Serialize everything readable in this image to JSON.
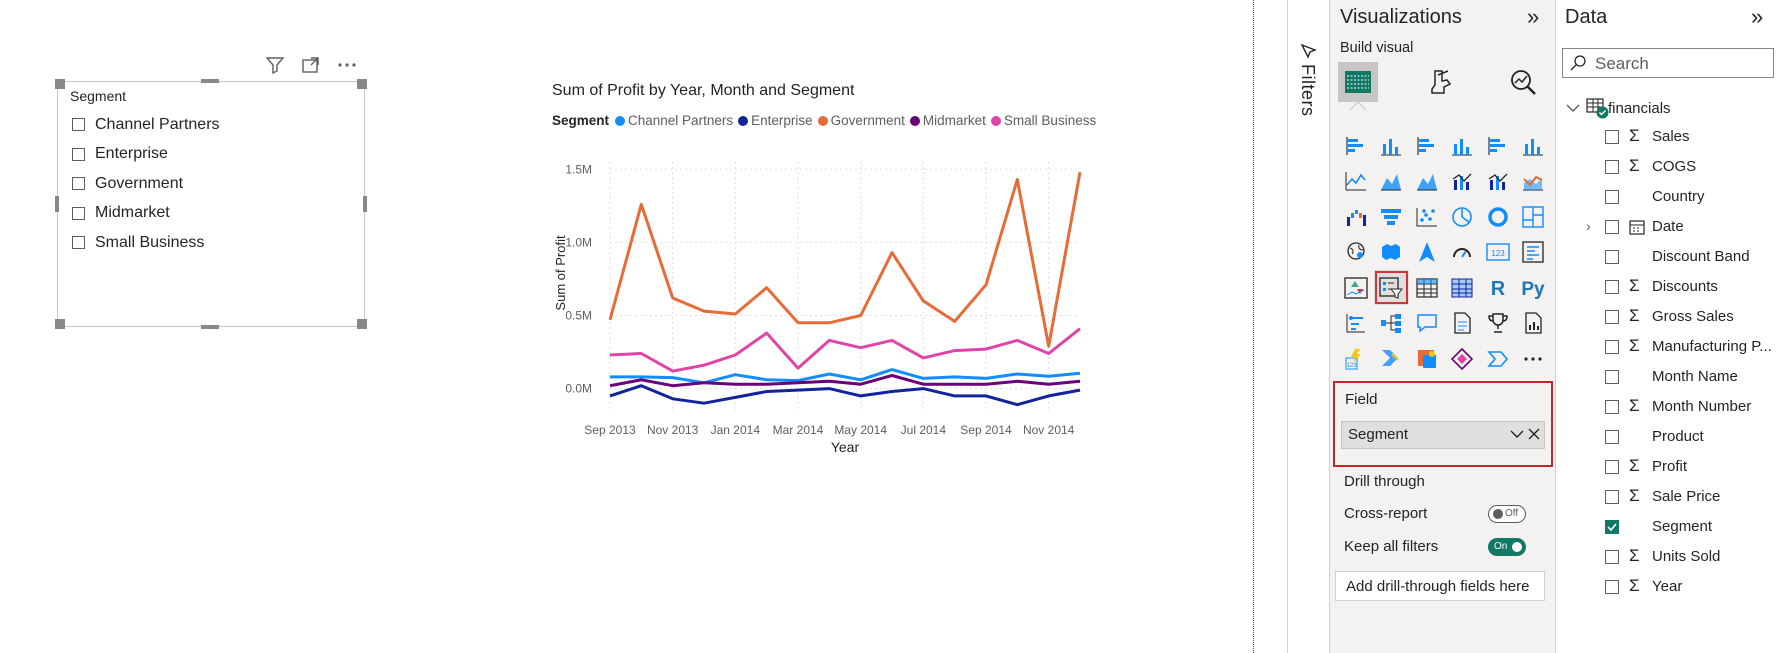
{
  "slicer": {
    "title": "Segment",
    "items": [
      "Channel Partners",
      "Enterprise",
      "Government",
      "Midmarket",
      "Small Business"
    ],
    "toolbar": {
      "filter_icon": "filter-icon",
      "focus_icon": "focus-mode-icon",
      "more_icon": "more-options-icon"
    }
  },
  "chart": {
    "title": "Sum of Profit by Year, Month and Segment",
    "legend_title": "Segment"
  },
  "chart_data": {
    "type": "line",
    "title": "Sum of Profit by Year, Month and Segment",
    "xlabel": "Year",
    "ylabel": "Sum of Profit",
    "x": [
      "Sep 2013",
      "Oct 2013",
      "Nov 2013",
      "Dec 2013",
      "Jan 2014",
      "Feb 2014",
      "Mar 2014",
      "Apr 2014",
      "May 2014",
      "Jun 2014",
      "Jul 2014",
      "Aug 2014",
      "Sep 2014",
      "Oct 2014",
      "Nov 2014",
      "Dec 2014"
    ],
    "x_tick_labels": [
      "Sep 2013",
      "Nov 2013",
      "Jan 2014",
      "Mar 2014",
      "May 2014",
      "Jul 2014",
      "Sep 2014",
      "Nov 2014"
    ],
    "y_tick_labels": [
      "0.0M",
      "0.5M",
      "1.0M",
      "1.5M"
    ],
    "ylim": [
      -0.16,
      1.55
    ],
    "grid": true,
    "legend_position": "top-left",
    "series": [
      {
        "name": "Channel Partners",
        "color": "#118dff",
        "values": [
          0.08,
          0.08,
          0.075,
          0.04,
          0.095,
          0.06,
          0.055,
          0.1,
          0.06,
          0.13,
          0.07,
          0.08,
          0.07,
          0.1,
          0.085,
          0.105
        ]
      },
      {
        "name": "Enterprise",
        "color": "#12239e",
        "values": [
          -0.05,
          0.02,
          -0.07,
          -0.1,
          -0.06,
          -0.02,
          -0.01,
          0.0,
          -0.05,
          -0.02,
          0.0,
          -0.05,
          -0.05,
          -0.11,
          -0.05,
          -0.01
        ]
      },
      {
        "name": "Government",
        "color": "#e66c37",
        "values": [
          0.47,
          1.26,
          0.62,
          0.53,
          0.51,
          0.69,
          0.45,
          0.45,
          0.5,
          0.93,
          0.6,
          0.46,
          0.71,
          1.43,
          0.29,
          1.48
        ]
      },
      {
        "name": "Midmarket",
        "color": "#6b007b",
        "values": [
          0.02,
          0.06,
          0.02,
          0.04,
          0.03,
          0.03,
          0.04,
          0.05,
          0.03,
          0.09,
          0.03,
          0.03,
          0.03,
          0.05,
          0.03,
          0.05
        ]
      },
      {
        "name": "Small Business",
        "color": "#e044a7",
        "values": [
          0.23,
          0.24,
          0.12,
          0.16,
          0.23,
          0.38,
          0.14,
          0.33,
          0.28,
          0.33,
          0.21,
          0.26,
          0.27,
          0.33,
          0.24,
          0.41
        ]
      }
    ]
  },
  "filters_pane": {
    "label": "Filters"
  },
  "visualizations": {
    "title": "Visualizations",
    "build_label": "Build visual",
    "field_label": "Field",
    "field_value": "Segment",
    "drill_label": "Drill through",
    "cross_report_label": "Cross-report",
    "cross_report_state": "Off",
    "keep_filters_label": "Keep all filters",
    "keep_filters_state": "On",
    "add_drill_label": "Add drill-through fields here",
    "more_visuals": "···"
  },
  "data_pane": {
    "title": "Data",
    "search_placeholder": "Search",
    "table": "financials",
    "fields": [
      {
        "name": "Sales",
        "sigma": "Σ",
        "checked": false
      },
      {
        "name": "COGS",
        "sigma": "Σ",
        "checked": false
      },
      {
        "name": "Country",
        "sigma": "",
        "checked": false
      },
      {
        "name": "Date",
        "sigma": "",
        "checked": false,
        "calendar": true
      },
      {
        "name": "Discount Band",
        "sigma": "",
        "checked": false
      },
      {
        "name": "Discounts",
        "sigma": "Σ",
        "checked": false
      },
      {
        "name": "Gross Sales",
        "sigma": "Σ",
        "checked": false
      },
      {
        "name": "Manufacturing P...",
        "sigma": "Σ",
        "checked": false
      },
      {
        "name": "Month Name",
        "sigma": "",
        "checked": false
      },
      {
        "name": "Month Number",
        "sigma": "Σ",
        "checked": false
      },
      {
        "name": "Product",
        "sigma": "",
        "checked": false
      },
      {
        "name": "Profit",
        "sigma": "Σ",
        "checked": false
      },
      {
        "name": "Sale Price",
        "sigma": "Σ",
        "checked": false
      },
      {
        "name": "Segment",
        "sigma": "",
        "checked": true
      },
      {
        "name": "Units Sold",
        "sigma": "Σ",
        "checked": false
      },
      {
        "name": "Year",
        "sigma": "Σ",
        "checked": false
      }
    ]
  }
}
